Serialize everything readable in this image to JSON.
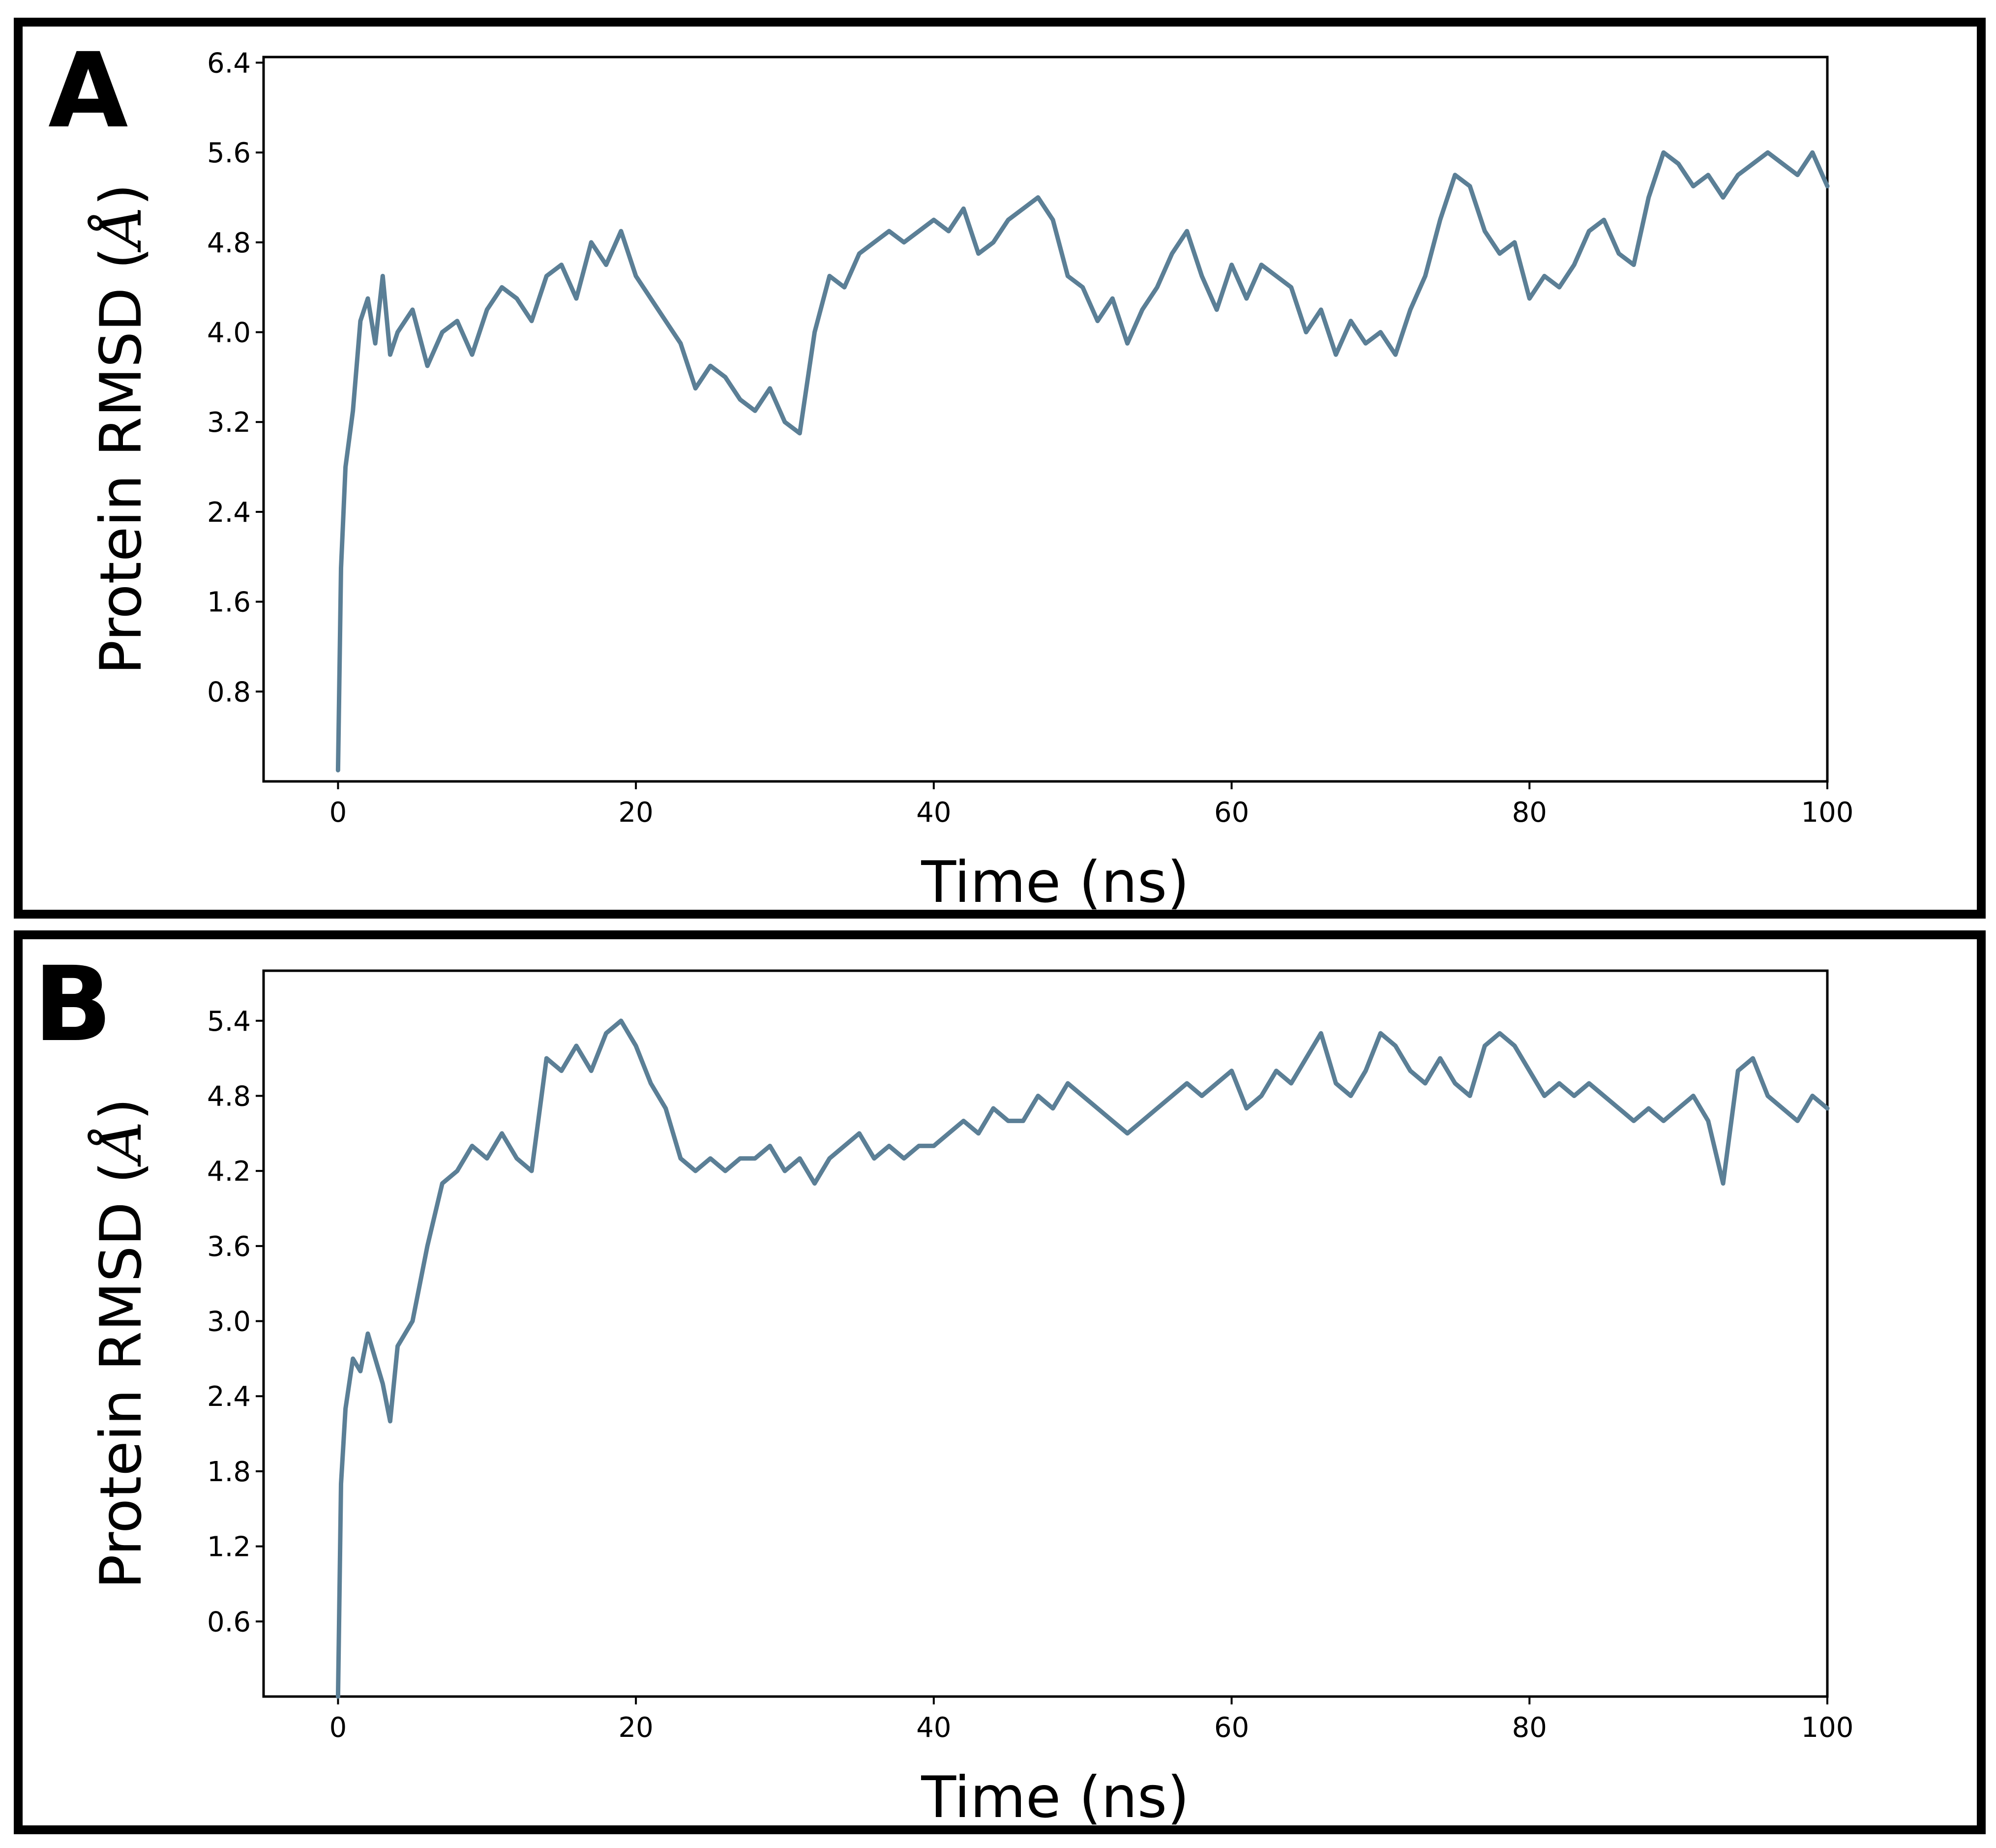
{
  "chart_data": [
    {
      "panel": "A",
      "type": "line",
      "xlabel": "Time (ns)",
      "ylabel_prefix": "Protein RMSD (",
      "ylabel_unit": "Å",
      "ylabel_suffix": ")",
      "xlim": [
        -5,
        100
      ],
      "ylim": [
        0.0,
        6.45
      ],
      "xticks": [
        0,
        20,
        40,
        60,
        80,
        100
      ],
      "xtick_labels": [
        "0",
        "20",
        "40",
        "60",
        "80",
        "100"
      ],
      "yticks": [
        0.8,
        1.6,
        2.4,
        3.2,
        4.0,
        4.8,
        5.6,
        6.4
      ],
      "ytick_labels": [
        "0.8",
        "1.6",
        "2.4",
        "3.2",
        "4.0",
        "4.8",
        "5.6",
        "6.4"
      ],
      "line_color": "#5b7f96",
      "series": [
        {
          "name": "Protein RMSD",
          "x": [
            0,
            0.2,
            0.5,
            1,
            1.5,
            2,
            2.5,
            3,
            3.5,
            4,
            5,
            6,
            7,
            8,
            9,
            10,
            11,
            12,
            13,
            14,
            15,
            16,
            17,
            18,
            19,
            20,
            21,
            22,
            23,
            24,
            25,
            26,
            27,
            28,
            29,
            30,
            31,
            32,
            33,
            34,
            35,
            36,
            37,
            38,
            39,
            40,
            41,
            42,
            43,
            44,
            45,
            46,
            47,
            48,
            49,
            50,
            51,
            52,
            53,
            54,
            55,
            56,
            57,
            58,
            59,
            60,
            61,
            62,
            63,
            64,
            65,
            66,
            67,
            68,
            69,
            70,
            71,
            72,
            73,
            74,
            75,
            76,
            77,
            78,
            79,
            80,
            81,
            82,
            83,
            84,
            85,
            86,
            87,
            88,
            89,
            90,
            91,
            92,
            93,
            94,
            95,
            96,
            97,
            98,
            99,
            100
          ],
          "y": [
            0.1,
            1.9,
            2.8,
            3.3,
            4.1,
            4.3,
            3.9,
            4.5,
            3.8,
            4.0,
            4.2,
            3.7,
            4.0,
            4.1,
            3.8,
            4.2,
            4.4,
            4.3,
            4.1,
            4.5,
            4.6,
            4.3,
            4.8,
            4.6,
            4.9,
            4.5,
            4.3,
            4.1,
            3.9,
            3.5,
            3.7,
            3.6,
            3.4,
            3.3,
            3.5,
            3.2,
            3.1,
            4.0,
            4.5,
            4.4,
            4.7,
            4.8,
            4.9,
            4.8,
            4.9,
            5.0,
            4.9,
            5.1,
            4.7,
            4.8,
            5.0,
            5.1,
            5.2,
            5.0,
            4.5,
            4.4,
            4.1,
            4.3,
            3.9,
            4.2,
            4.4,
            4.7,
            4.9,
            4.5,
            4.2,
            4.6,
            4.3,
            4.6,
            4.5,
            4.4,
            4.0,
            4.2,
            3.8,
            4.1,
            3.9,
            4.0,
            3.8,
            4.2,
            4.5,
            5.0,
            5.4,
            5.3,
            4.9,
            4.7,
            4.8,
            4.3,
            4.5,
            4.4,
            4.6,
            4.9,
            5.0,
            4.7,
            4.6,
            5.2,
            5.6,
            5.5,
            5.3,
            5.4,
            5.2,
            5.4,
            5.5,
            5.6,
            5.5,
            5.4,
            5.6,
            5.3
          ]
        }
      ]
    },
    {
      "panel": "B",
      "type": "line",
      "xlabel": "Time (ns)",
      "ylabel_prefix": "Protein RMSD (",
      "ylabel_unit": "Å",
      "ylabel_suffix": ")",
      "xlim": [
        -5,
        100
      ],
      "ylim": [
        0.0,
        5.8
      ],
      "xticks": [
        0,
        20,
        40,
        60,
        80,
        100
      ],
      "xtick_labels": [
        "0",
        "20",
        "40",
        "60",
        "80",
        "100"
      ],
      "yticks": [
        0.6,
        1.2,
        1.8,
        2.4,
        3.0,
        3.6,
        4.2,
        4.8,
        5.4
      ],
      "ytick_labels": [
        "0.6",
        "1.2",
        "1.8",
        "2.4",
        "3.0",
        "3.6",
        "4.2",
        "4.8",
        "5.4"
      ],
      "line_color": "#5b7f96",
      "series": [
        {
          "name": "Protein RMSD",
          "x": [
            0,
            0.2,
            0.5,
            1,
            1.5,
            2,
            2.5,
            3,
            3.5,
            4,
            5,
            6,
            7,
            8,
            9,
            10,
            11,
            12,
            13,
            14,
            15,
            16,
            17,
            18,
            19,
            20,
            21,
            22,
            23,
            24,
            25,
            26,
            27,
            28,
            29,
            30,
            31,
            32,
            33,
            34,
            35,
            36,
            37,
            38,
            39,
            40,
            41,
            42,
            43,
            44,
            45,
            46,
            47,
            48,
            49,
            50,
            51,
            52,
            53,
            54,
            55,
            56,
            57,
            58,
            59,
            60,
            61,
            62,
            63,
            64,
            65,
            66,
            67,
            68,
            69,
            70,
            71,
            72,
            73,
            74,
            75,
            76,
            77,
            78,
            79,
            80,
            81,
            82,
            83,
            84,
            85,
            86,
            87,
            88,
            89,
            90,
            91,
            92,
            93,
            94,
            95,
            96,
            97,
            98,
            99,
            100
          ],
          "y": [
            0.0,
            1.7,
            2.3,
            2.7,
            2.6,
            2.9,
            2.7,
            2.5,
            2.2,
            2.8,
            3.0,
            3.6,
            4.1,
            4.2,
            4.4,
            4.3,
            4.5,
            4.3,
            4.2,
            5.1,
            5.0,
            5.2,
            5.0,
            5.3,
            5.4,
            5.2,
            4.9,
            4.7,
            4.3,
            4.2,
            4.3,
            4.2,
            4.3,
            4.3,
            4.4,
            4.2,
            4.3,
            4.1,
            4.3,
            4.4,
            4.5,
            4.3,
            4.4,
            4.3,
            4.4,
            4.4,
            4.5,
            4.6,
            4.5,
            4.7,
            4.6,
            4.6,
            4.8,
            4.7,
            4.9,
            4.8,
            4.7,
            4.6,
            4.5,
            4.6,
            4.7,
            4.8,
            4.9,
            4.8,
            4.9,
            5.0,
            4.7,
            4.8,
            5.0,
            4.9,
            5.1,
            5.3,
            4.9,
            4.8,
            5.0,
            5.3,
            5.2,
            5.0,
            4.9,
            5.1,
            4.9,
            4.8,
            5.2,
            5.3,
            5.2,
            5.0,
            4.8,
            4.9,
            4.8,
            4.9,
            4.8,
            4.7,
            4.6,
            4.7,
            4.6,
            4.7,
            4.8,
            4.6,
            4.1,
            5.0,
            5.1,
            4.8,
            4.7,
            4.6,
            4.8,
            4.7
          ]
        }
      ]
    }
  ],
  "panels": [
    {
      "letter": "A"
    },
    {
      "letter": "B"
    }
  ]
}
